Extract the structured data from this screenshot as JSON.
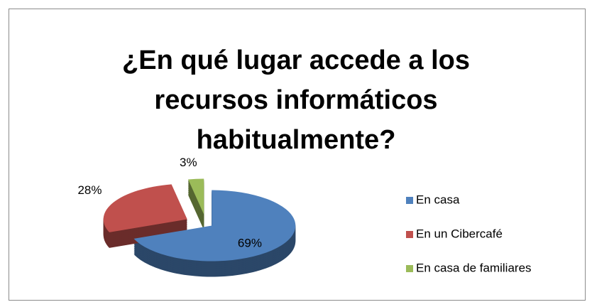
{
  "chart_data": {
    "type": "pie3d",
    "title": "¿En qué lugar accede a los recursos informáticos habitualmente?",
    "categories": [
      "En casa",
      "En un Cibercafé",
      "En casa de familiares"
    ],
    "values": [
      69,
      28,
      3
    ],
    "value_labels": [
      "69%",
      "28%",
      "3%"
    ],
    "colors": [
      "#4f81bd",
      "#c0504d",
      "#9bbb59"
    ],
    "legend": "right"
  }
}
